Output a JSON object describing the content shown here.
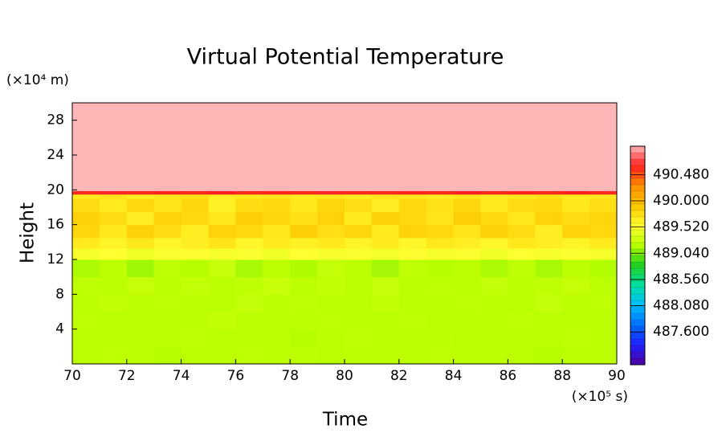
{
  "chart_data": {
    "type": "heatmap",
    "title": "Virtual Potential Temperature",
    "x_label": "Time",
    "y_label": "Height",
    "x_unit": "(×10⁵ s)",
    "y_unit": "(×10⁴ m)",
    "xlim": [
      70,
      90
    ],
    "xticks": [
      70,
      72,
      74,
      76,
      78,
      80,
      82,
      84,
      86,
      88,
      90
    ],
    "ylim": [
      0,
      30
    ],
    "yticks": [
      4,
      8,
      12,
      16,
      20,
      24,
      28
    ],
    "x_edges": [
      70,
      71,
      72,
      73,
      74,
      75,
      76,
      77,
      78,
      79,
      80,
      81,
      82,
      83,
      84,
      85,
      86,
      87,
      88,
      89,
      90
    ],
    "y_edges": [
      0,
      2,
      4,
      6,
      8,
      10,
      12,
      13.3,
      14.5,
      16,
      17.5,
      19,
      19.5,
      19.9,
      30
    ],
    "z": [
      [
        489.2,
        489.22,
        489.2,
        489.18,
        489.2,
        489.2,
        489.21,
        489.2,
        489.2,
        489.19,
        489.2,
        489.2,
        489.2,
        489.22,
        489.2,
        489.2,
        489.2,
        489.18,
        489.2,
        489.2
      ],
      [
        489.2,
        489.2,
        489.19,
        489.2,
        489.22,
        489.2,
        489.2,
        489.2,
        489.18,
        489.2,
        489.21,
        489.2,
        489.2,
        489.2,
        489.19,
        489.2,
        489.2,
        489.2,
        489.21,
        489.2
      ],
      [
        489.21,
        489.2,
        489.2,
        489.2,
        489.2,
        489.23,
        489.2,
        489.2,
        489.2,
        489.22,
        489.2,
        489.2,
        489.21,
        489.2,
        489.2,
        489.2,
        489.22,
        489.2,
        489.2,
        489.2
      ],
      [
        489.2,
        489.23,
        489.2,
        489.22,
        489.2,
        489.2,
        489.24,
        489.2,
        489.22,
        489.2,
        489.2,
        489.23,
        489.2,
        489.2,
        489.22,
        489.2,
        489.2,
        489.24,
        489.2,
        489.21
      ],
      [
        489.22,
        489.2,
        489.25,
        489.2,
        489.24,
        489.2,
        489.22,
        489.26,
        489.2,
        489.23,
        489.2,
        489.25,
        489.2,
        489.22,
        489.2,
        489.24,
        489.2,
        489.22,
        489.25,
        489.2
      ],
      [
        489.15,
        489.2,
        489.12,
        489.22,
        489.18,
        489.25,
        489.14,
        489.2,
        489.16,
        489.24,
        489.2,
        489.13,
        489.22,
        489.18,
        489.2,
        489.15,
        489.22,
        489.14,
        489.2,
        489.17
      ],
      [
        489.5,
        489.55,
        489.48,
        489.52,
        489.56,
        489.5,
        489.53,
        489.47,
        489.55,
        489.5,
        489.52,
        489.49,
        489.56,
        489.5,
        489.53,
        489.48,
        489.55,
        489.5,
        489.52,
        489.5
      ],
      [
        489.68,
        489.62,
        489.7,
        489.6,
        489.66,
        489.72,
        489.6,
        489.68,
        489.64,
        489.7,
        489.62,
        489.68,
        489.6,
        489.7,
        489.65,
        489.6,
        489.7,
        489.66,
        489.62,
        489.68
      ],
      [
        489.82,
        489.7,
        489.85,
        489.78,
        489.65,
        489.84,
        489.8,
        489.7,
        489.86,
        489.76,
        489.82,
        489.68,
        489.84,
        489.8,
        489.72,
        489.85,
        489.78,
        489.66,
        489.83,
        489.8
      ],
      [
        489.85,
        489.78,
        489.66,
        489.84,
        489.8,
        489.7,
        489.86,
        489.82,
        489.75,
        489.84,
        489.68,
        489.85,
        489.8,
        489.72,
        489.86,
        489.8,
        489.7,
        489.84,
        489.78,
        489.82
      ],
      [
        489.78,
        489.68,
        489.8,
        489.72,
        489.82,
        489.64,
        489.78,
        489.8,
        489.7,
        489.82,
        489.76,
        489.66,
        489.8,
        489.74,
        489.82,
        489.68,
        489.78,
        489.8,
        489.7,
        489.76
      ],
      [
        489.68,
        489.72,
        489.65,
        489.7,
        489.74,
        489.66,
        489.7,
        489.72,
        489.68,
        489.7,
        489.65,
        489.72,
        489.7,
        489.68,
        489.72,
        489.66,
        489.7,
        489.74,
        489.68,
        489.7
      ],
      [
        490.6,
        490.65,
        490.6,
        490.62,
        490.6,
        490.64,
        490.6,
        490.62,
        490.6,
        490.65,
        490.6,
        490.6,
        490.62,
        490.6,
        490.64,
        490.6,
        490.62,
        490.6,
        490.64,
        490.6
      ],
      [
        491,
        491,
        491,
        491,
        491,
        491,
        491,
        491,
        491,
        491,
        491,
        491,
        491,
        491,
        491,
        491,
        491,
        491,
        491,
        491
      ]
    ],
    "clim": [
      487.0,
      491.0
    ],
    "cticks": [
      {
        "value": 487.6,
        "label": "487.600"
      },
      {
        "value": 488.08,
        "label": "488.080"
      },
      {
        "value": 488.56,
        "label": "488.560"
      },
      {
        "value": 489.04,
        "label": "489.040"
      },
      {
        "value": 489.52,
        "label": "489.520"
      },
      {
        "value": 490.0,
        "label": "490.000"
      },
      {
        "value": 490.48,
        "label": "490.480"
      }
    ],
    "colormap": [
      "#5000a0",
      "#2020ff",
      "#0070ff",
      "#00c0ff",
      "#00e0a0",
      "#20d020",
      "#b8ff00",
      "#ffff30",
      "#ffc800",
      "#ff9000",
      "#ff2020",
      "#ffb6b6"
    ]
  }
}
